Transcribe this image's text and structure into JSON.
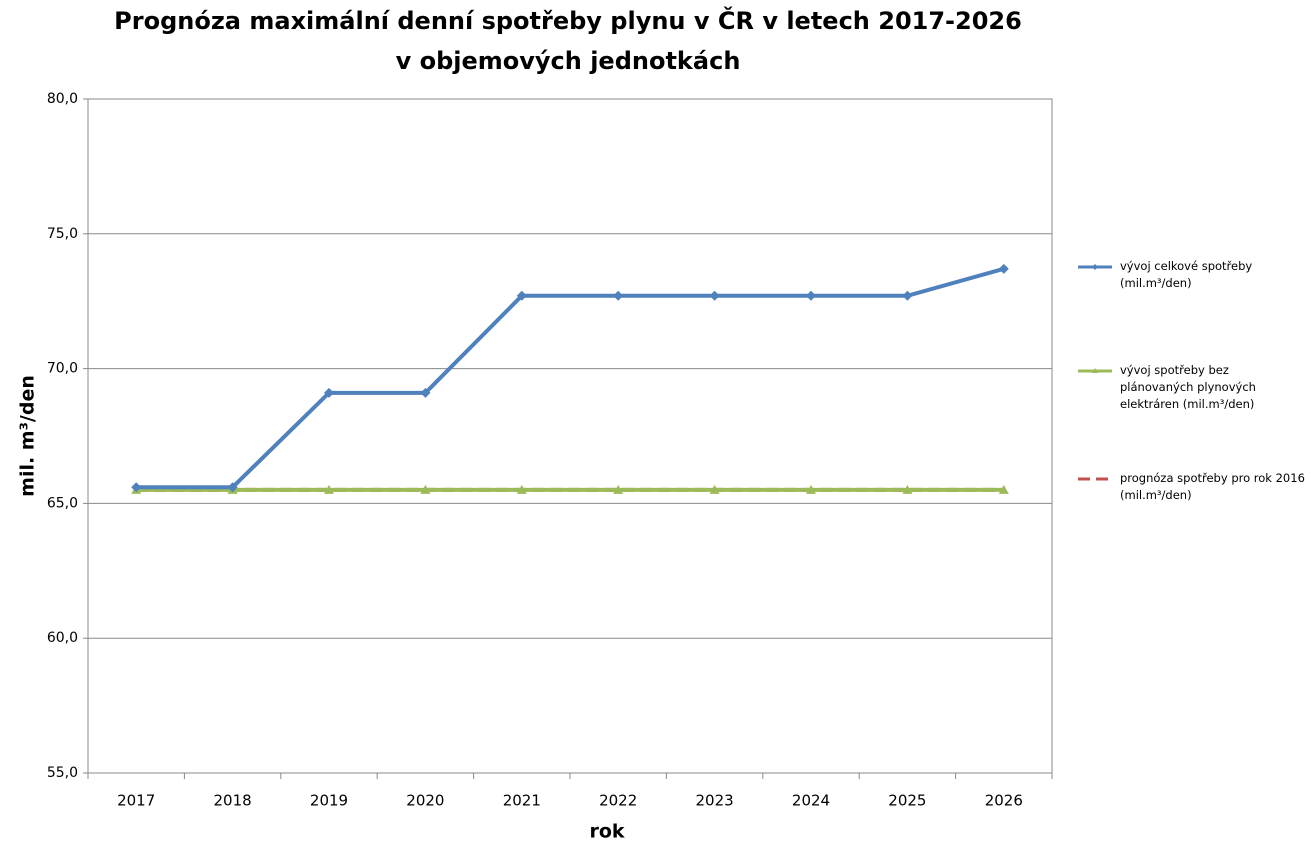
{
  "chart_data": {
    "type": "line",
    "title": "Prognóza maximální denní spotřeby plynu v ČR v letech 2017-2026",
    "subtitle": "v objemových jednotkách",
    "xlabel": "rok",
    "ylabel": "mil. m³/den",
    "categories": [
      "2017",
      "2018",
      "2019",
      "2020",
      "2021",
      "2022",
      "2023",
      "2024",
      "2025",
      "2026"
    ],
    "series": [
      {
        "name": "vývoj celkové spotřeby (mil.m³/den)",
        "color": "#4f81bd",
        "marker": "diamond",
        "values": [
          65.6,
          65.6,
          69.1,
          69.1,
          72.7,
          72.7,
          72.7,
          72.7,
          72.7,
          73.7
        ]
      },
      {
        "name": "vývoj spotřeby bez plánovaných plynových elektráren (mil.m³/den)",
        "color": "#9bbb59",
        "marker": "triangle",
        "values": [
          65.5,
          65.5,
          65.5,
          65.5,
          65.5,
          65.5,
          65.5,
          65.5,
          65.5,
          65.5
        ]
      },
      {
        "name": "prognóza spotřeby pro rok 2016 (mil.m³/den)",
        "color": "#c0504d",
        "dashed": true,
        "values": [
          65.5,
          65.5,
          65.5,
          65.5,
          65.5,
          65.5,
          65.5,
          65.5,
          65.5,
          65.5
        ]
      }
    ],
    "ylim": [
      55,
      80
    ],
    "yticks": [
      {
        "value": 55,
        "label": "55,0"
      },
      {
        "value": 60,
        "label": "60,0"
      },
      {
        "value": 65,
        "label": "65,0"
      },
      {
        "value": 70,
        "label": "70,0"
      },
      {
        "value": 75,
        "label": "75,0"
      },
      {
        "value": 80,
        "label": "80,0"
      }
    ],
    "grid": true
  }
}
